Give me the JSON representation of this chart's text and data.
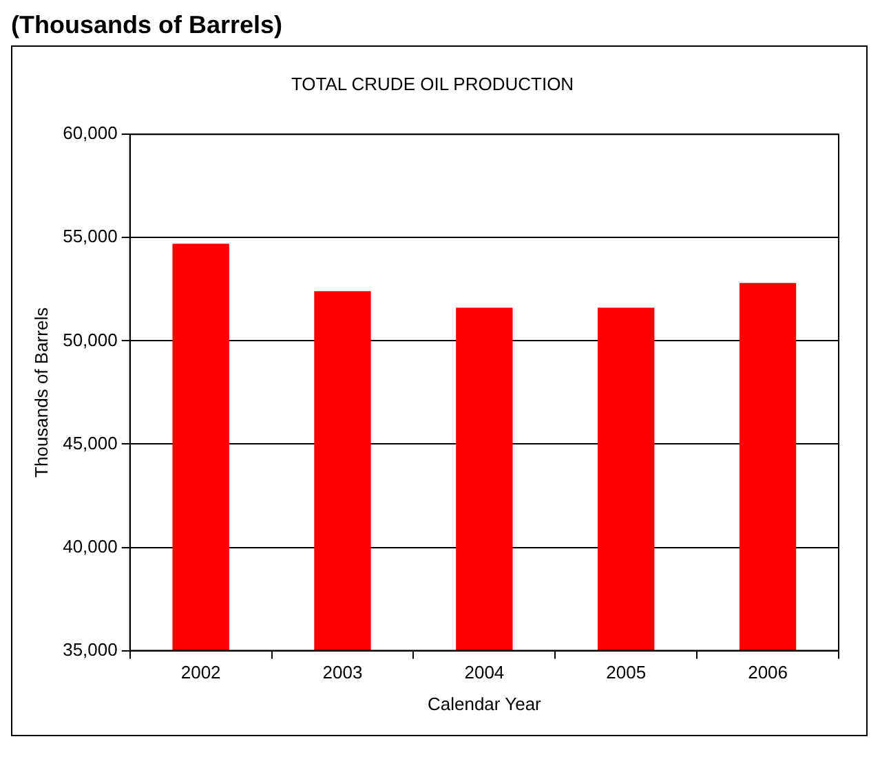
{
  "chart_data": {
    "type": "bar",
    "title": "TOTAL CRUDE OIL PRODUCTION",
    "subtitle": "(Thousands of Barrels)",
    "xlabel": "Calendar Year",
    "ylabel": "Thousands of Barrels",
    "categories": [
      "2002",
      "2003",
      "2004",
      "2005",
      "2006"
    ],
    "values": [
      54700,
      52400,
      51600,
      51600,
      52800
    ],
    "color": "#ff0000",
    "ylim": [
      35000,
      60000
    ],
    "yticks": [
      {
        "value": 35000,
        "label": "35,000"
      },
      {
        "value": 40000,
        "label": "40,000"
      },
      {
        "value": 45000,
        "label": "45,000"
      },
      {
        "value": 50000,
        "label": "50,000"
      },
      {
        "value": 55000,
        "label": "55,000"
      },
      {
        "value": 60000,
        "label": "60,000"
      }
    ],
    "grid": "y",
    "legend": false
  }
}
